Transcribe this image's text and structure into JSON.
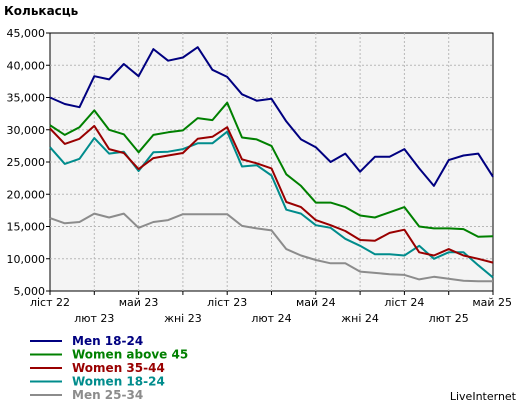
{
  "chart_data": {
    "type": "line",
    "title": "Колькасць",
    "ylim": [
      5000,
      45000
    ],
    "y_ticks": [
      "5,000",
      "10,000",
      "15,000",
      "20,000",
      "25,000",
      "30,000",
      "35,000",
      "40,000",
      "45,000"
    ],
    "y_tick_values": [
      5000,
      10000,
      15000,
      20000,
      25000,
      30000,
      35000,
      40000,
      45000
    ],
    "grid": true,
    "legend": "bottom-left",
    "x_tick_labels": [
      {
        "label": "ліст 22",
        "index": 0,
        "row": 0
      },
      {
        "label": "лют 23",
        "index": 3,
        "row": 1
      },
      {
        "label": "май 23",
        "index": 6,
        "row": 0
      },
      {
        "label": "жні 23",
        "index": 9,
        "row": 1
      },
      {
        "label": "ліст 23",
        "index": 12,
        "row": 0
      },
      {
        "label": "лют 24",
        "index": 15,
        "row": 1
      },
      {
        "label": "май 24",
        "index": 18,
        "row": 0
      },
      {
        "label": "жні 24",
        "index": 21,
        "row": 1
      },
      {
        "label": "ліст 24",
        "index": 24,
        "row": 0
      },
      {
        "label": "лют 25",
        "index": 27,
        "row": 1
      },
      {
        "label": "май 25",
        "index": 30,
        "row": 0
      }
    ],
    "x_count": 31,
    "series": [
      {
        "name": "Men 18-24",
        "color": "#000080",
        "values": [
          35000,
          34000,
          33500,
          38300,
          37800,
          40200,
          38300,
          42500,
          40700,
          41200,
          42800,
          39300,
          38200,
          35500,
          34500,
          34800,
          31300,
          28500,
          27300,
          25000,
          26300,
          23500,
          25800,
          25800,
          27000,
          24000,
          21300,
          25300,
          26000,
          26300,
          22700
        ]
      },
      {
        "name": "Women above 45",
        "color": "#008000",
        "values": [
          30700,
          29200,
          30400,
          33000,
          30000,
          29300,
          26500,
          29200,
          29600,
          29900,
          31800,
          31500,
          34200,
          28800,
          28500,
          27500,
          23100,
          21300,
          18700,
          18700,
          18000,
          16700,
          16400,
          17200,
          18000,
          15000,
          14700,
          14700,
          14600,
          13400,
          13500
        ]
      },
      {
        "name": "Women 35-44",
        "color": "#990000",
        "values": [
          30200,
          27800,
          28600,
          30600,
          27000,
          26400,
          23900,
          25600,
          26000,
          26400,
          28600,
          28900,
          30400,
          25400,
          24800,
          24000,
          18800,
          18000,
          16000,
          15200,
          14300,
          12900,
          12800,
          14000,
          14500,
          11000,
          10500,
          11500,
          10500,
          10000,
          9400
        ]
      },
      {
        "name": "Women 18-24",
        "color": "#008c8c",
        "values": [
          27300,
          24700,
          25500,
          28700,
          26300,
          26600,
          23600,
          26500,
          26600,
          27000,
          27900,
          27900,
          29700,
          24300,
          24500,
          22900,
          17600,
          17000,
          15200,
          14800,
          13100,
          12000,
          10700,
          10700,
          10500,
          12000,
          10000,
          11000,
          11000,
          9000,
          7100
        ]
      },
      {
        "name": "Men 25-34",
        "color": "#8c8c8c",
        "values": [
          16300,
          15500,
          15700,
          17000,
          16400,
          17000,
          14800,
          15700,
          16000,
          16900,
          16900,
          16900,
          16900,
          15100,
          14700,
          14400,
          11500,
          10500,
          9800,
          9300,
          9300,
          8000,
          7800,
          7600,
          7500,
          6800,
          7200,
          6900,
          6600,
          6500,
          6500
        ]
      }
    ]
  },
  "footer": {
    "brand": "LiveInternet"
  }
}
